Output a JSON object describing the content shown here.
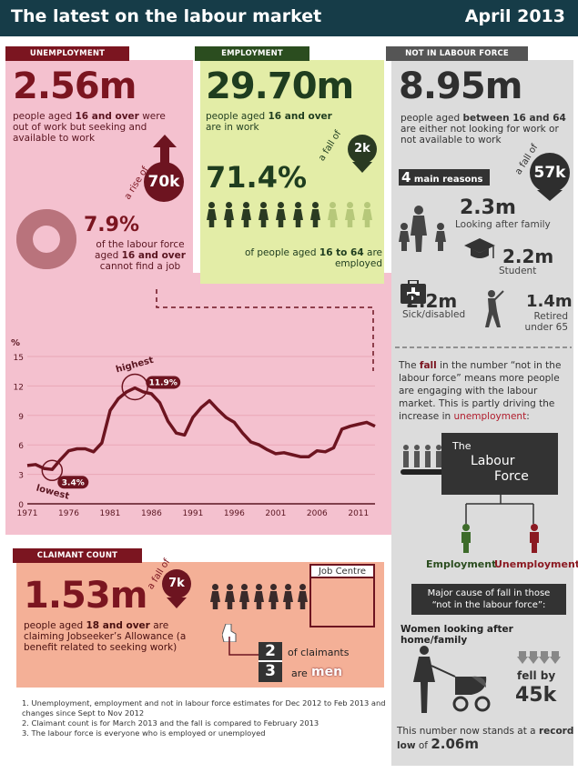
{
  "header": {
    "title": "The latest on the labour market",
    "date": "April 2013"
  },
  "unemployment": {
    "tag": "UNEMPLOYMENT",
    "value": "2.56m",
    "desc_pre": "people aged ",
    "desc_bold": "16 and over",
    "desc_post": " were out of work but seeking and available to work",
    "change_label": "a rise of",
    "change_value": "70k",
    "rate": "7.9%",
    "rate_desc_pre": "of the labour force aged ",
    "rate_desc_bold": "16 and over",
    "rate_desc_post": " cannot find a job",
    "rate_fraction": 0.079
  },
  "employment": {
    "tag": "EMPLOYMENT",
    "value": "29.70m",
    "desc_pre": "people aged ",
    "desc_bold": "16 and over",
    "desc_post": " are in work",
    "change_label": "a fall of",
    "change_value": "2k",
    "rate": "71.4%",
    "rate_desc_pre": "of people aged ",
    "rate_desc_bold": "16 to 64",
    "rate_desc_post": " are employed",
    "people_filled": 7,
    "people_total": 10
  },
  "not_in_labour_force": {
    "tag": "NOT IN LABOUR FORCE",
    "value": "8.95m",
    "desc_pre": "people aged ",
    "desc_bold": "between 16 and 64",
    "desc_post": " are either not looking for work or not available to work",
    "change_label": "a fall of",
    "change_value": "57k",
    "reasons_num": "4",
    "reasons_label": "main reasons",
    "reasons": [
      {
        "value": "2.3m",
        "label": "Looking after family",
        "icon": "family-icon"
      },
      {
        "value": "2.2m",
        "label": "Student",
        "icon": "graduation-cap-icon"
      },
      {
        "value": "2.2m",
        "label": "Sick/disabled",
        "icon": "medical-kit-icon"
      },
      {
        "value": "1.4m",
        "label": "Retired under 65",
        "icon": "golfer-icon"
      }
    ],
    "note_pre": "The ",
    "note_bold": "fall",
    "note_mid": " in the number “not in the labour force” means more people are engaging with the labour market. This is partly driving the increase in ",
    "note_red": "unemployment",
    "note_end": ":",
    "labour_force_title_1": "The",
    "labour_force_title_2": "Labour",
    "labour_force_title_3": "Force",
    "employment_label": "Employment",
    "unemployment_label": "Unemployment",
    "cause_box": "Major cause of fall in those “not in the labour force”:",
    "cause_title": "Women looking after home/family",
    "cause_fall_label": "fell by",
    "cause_fall_value": "45k",
    "record_pre": "This number now stands at a ",
    "record_mid": "record low",
    "record_of": " of ",
    "record_value": "2.06m"
  },
  "claimant": {
    "tag": "CLAIMANT COUNT",
    "value": "1.53m",
    "desc_pre": "people aged ",
    "desc_bold": "18 and over",
    "desc_post": " are claiming Jobseeker’s Allowance (a benefit related to seeking work)",
    "change_label": "a fall of",
    "change_value": "7k",
    "job_centre": "Job Centre",
    "fraction_num": "2",
    "fraction_den": "3",
    "fraction_label": "of claimants",
    "fraction_are": "are",
    "fraction_men": "men"
  },
  "footnotes": [
    "1. Unemployment, employment and not in labour force estimates for Dec 2012 to Feb 2013 and changes since Sept to Nov 2012",
    "2. Claimant count is for March 2013 and the fall is compared to February 2013",
    "3. The labour force is everyone who is employed or unemployed"
  ],
  "chart_data": {
    "type": "line",
    "ylabel": "%",
    "ylim": [
      0,
      15
    ],
    "yticks": [
      0,
      3,
      6,
      9,
      12,
      15
    ],
    "xlim": [
      1971,
      2013
    ],
    "xticks": [
      1971,
      1976,
      1981,
      1986,
      1991,
      1996,
      2001,
      2006,
      2011
    ],
    "x": [
      1971,
      1972,
      1973,
      1974,
      1975,
      1976,
      1977,
      1978,
      1979,
      1980,
      1981,
      1982,
      1983,
      1984,
      1985,
      1986,
      1987,
      1988,
      1989,
      1990,
      1991,
      1992,
      1993,
      1994,
      1995,
      1996,
      1997,
      1998,
      1999,
      2000,
      2001,
      2002,
      2003,
      2004,
      2005,
      2006,
      2007,
      2008,
      2009,
      2010,
      2011,
      2012,
      2013
    ],
    "y": [
      3.9,
      4.0,
      3.6,
      3.5,
      4.5,
      5.4,
      5.6,
      5.6,
      5.3,
      6.2,
      9.5,
      10.7,
      11.4,
      11.8,
      11.4,
      11.2,
      10.3,
      8.4,
      7.2,
      7.0,
      8.8,
      9.8,
      10.5,
      9.6,
      8.8,
      8.3,
      7.2,
      6.3,
      6.0,
      5.5,
      5.1,
      5.2,
      5.0,
      4.8,
      4.8,
      5.4,
      5.3,
      5.7,
      7.6,
      7.9,
      8.1,
      8.3,
      7.9
    ],
    "annotations": [
      {
        "label": "highest",
        "value": "11.9%",
        "x": 1984,
        "y": 11.9
      },
      {
        "label": "lowest",
        "value": "3.4%",
        "x": 1974,
        "y": 3.4
      }
    ]
  }
}
